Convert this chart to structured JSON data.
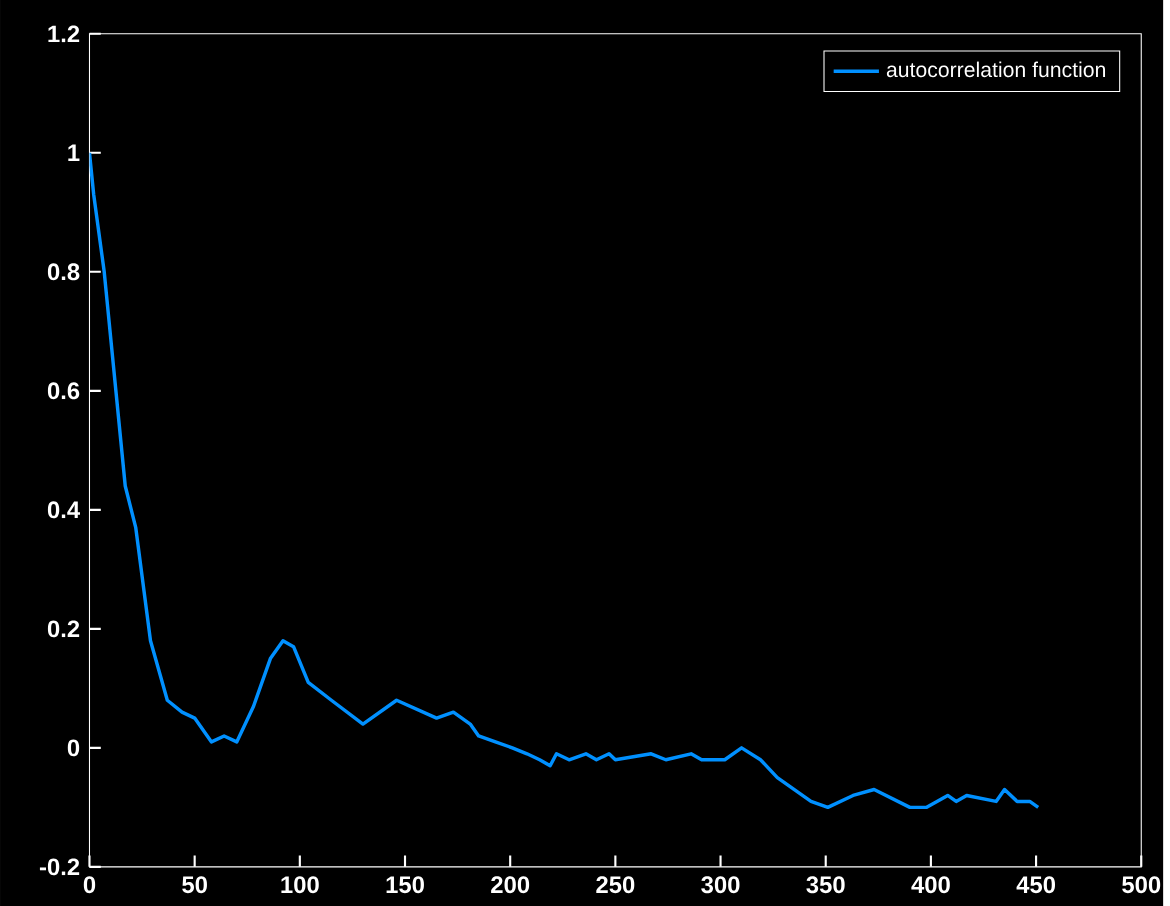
{
  "chart_data": {
    "type": "line",
    "xlim": [
      0,
      500
    ],
    "ylim": [
      -0.2,
      1.2
    ],
    "xticks": [
      0,
      50,
      100,
      150,
      200,
      250,
      300,
      350,
      400,
      450,
      500
    ],
    "yticks": [
      -0.2,
      0,
      0.2,
      0.4,
      0.6,
      0.8,
      1,
      1.2
    ],
    "legend": "top right",
    "grid": false,
    "marker": "none",
    "line_style": "solid",
    "series": [
      {
        "name": "autocorrelation function",
        "color": "#0090ff",
        "x": [
          0,
          2,
          7,
          12,
          17,
          22,
          29,
          37,
          44,
          50,
          58,
          64,
          70,
          78,
          86,
          92,
          97,
          104,
          115,
          130,
          146,
          165,
          173,
          181,
          185,
          193,
          201,
          208,
          214,
          219,
          222,
          228,
          236,
          241,
          247,
          250,
          267,
          274,
          286,
          291,
          302,
          310,
          319,
          327,
          335,
          343,
          351,
          363,
          373,
          390,
          398,
          408,
          412,
          417,
          431,
          435,
          441,
          447,
          451
        ],
        "values": [
          1.0,
          0.93,
          0.8,
          0.62,
          0.44,
          0.37,
          0.18,
          0.08,
          0.06,
          0.05,
          0.01,
          0.02,
          0.01,
          0.07,
          0.15,
          0.18,
          0.17,
          0.11,
          0.08,
          0.04,
          0.08,
          0.05,
          0.06,
          0.04,
          0.02,
          0.01,
          0.0,
          -0.01,
          -0.02,
          -0.03,
          -0.01,
          -0.02,
          -0.01,
          -0.02,
          -0.01,
          -0.02,
          -0.01,
          -0.02,
          -0.01,
          -0.02,
          -0.02,
          0.0,
          -0.02,
          -0.05,
          -0.07,
          -0.09,
          -0.1,
          -0.08,
          -0.07,
          -0.1,
          -0.1,
          -0.08,
          -0.09,
          -0.08,
          -0.09,
          -0.07,
          -0.09,
          -0.09,
          -0.1
        ]
      }
    ]
  }
}
